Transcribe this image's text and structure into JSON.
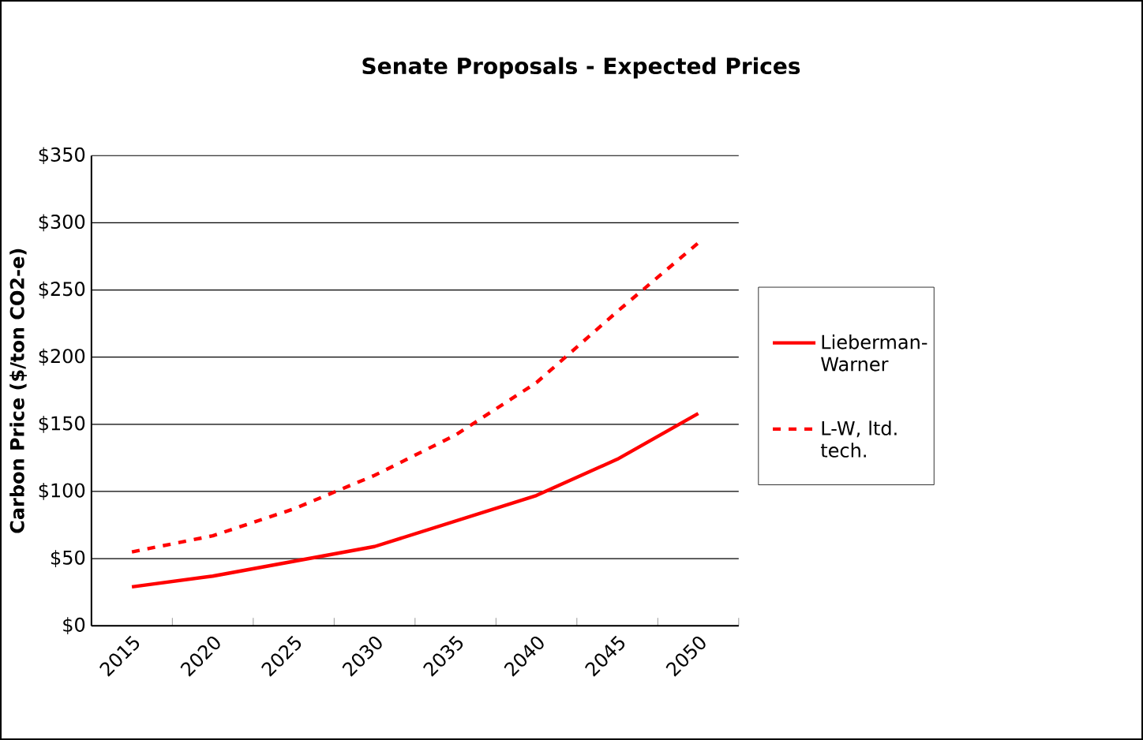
{
  "chart_data": {
    "type": "line",
    "title": "Senate Proposals - Expected Prices",
    "ylabel": "Carbon Price ($/ton CO2-e)",
    "categories": [
      "2015",
      "2020",
      "2025",
      "2030",
      "2035",
      "2040",
      "2045",
      "2050"
    ],
    "series": [
      {
        "name": "Lieberman-Warner",
        "color": "#ff0000",
        "line_style": "solid",
        "values": [
          29,
          37,
          48,
          59,
          78,
          97,
          124,
          158
        ]
      },
      {
        "name": "L-W, ltd. tech.",
        "color": "#ff0000",
        "line_style": "dashed",
        "values": [
          55,
          67,
          87,
          112,
          142,
          181,
          234,
          285
        ]
      }
    ],
    "ylim": [
      0,
      350
    ],
    "yticks": [
      {
        "value": 0,
        "label": "$0"
      },
      {
        "value": 50,
        "label": "$50"
      },
      {
        "value": 100,
        "label": "$100"
      },
      {
        "value": 150,
        "label": "$150"
      },
      {
        "value": 200,
        "label": "$200"
      },
      {
        "value": 250,
        "label": "$250"
      },
      {
        "value": 300,
        "label": "$300"
      },
      {
        "value": 350,
        "label": "$350"
      }
    ],
    "grid": "y",
    "legend": "right",
    "marker": "none"
  }
}
